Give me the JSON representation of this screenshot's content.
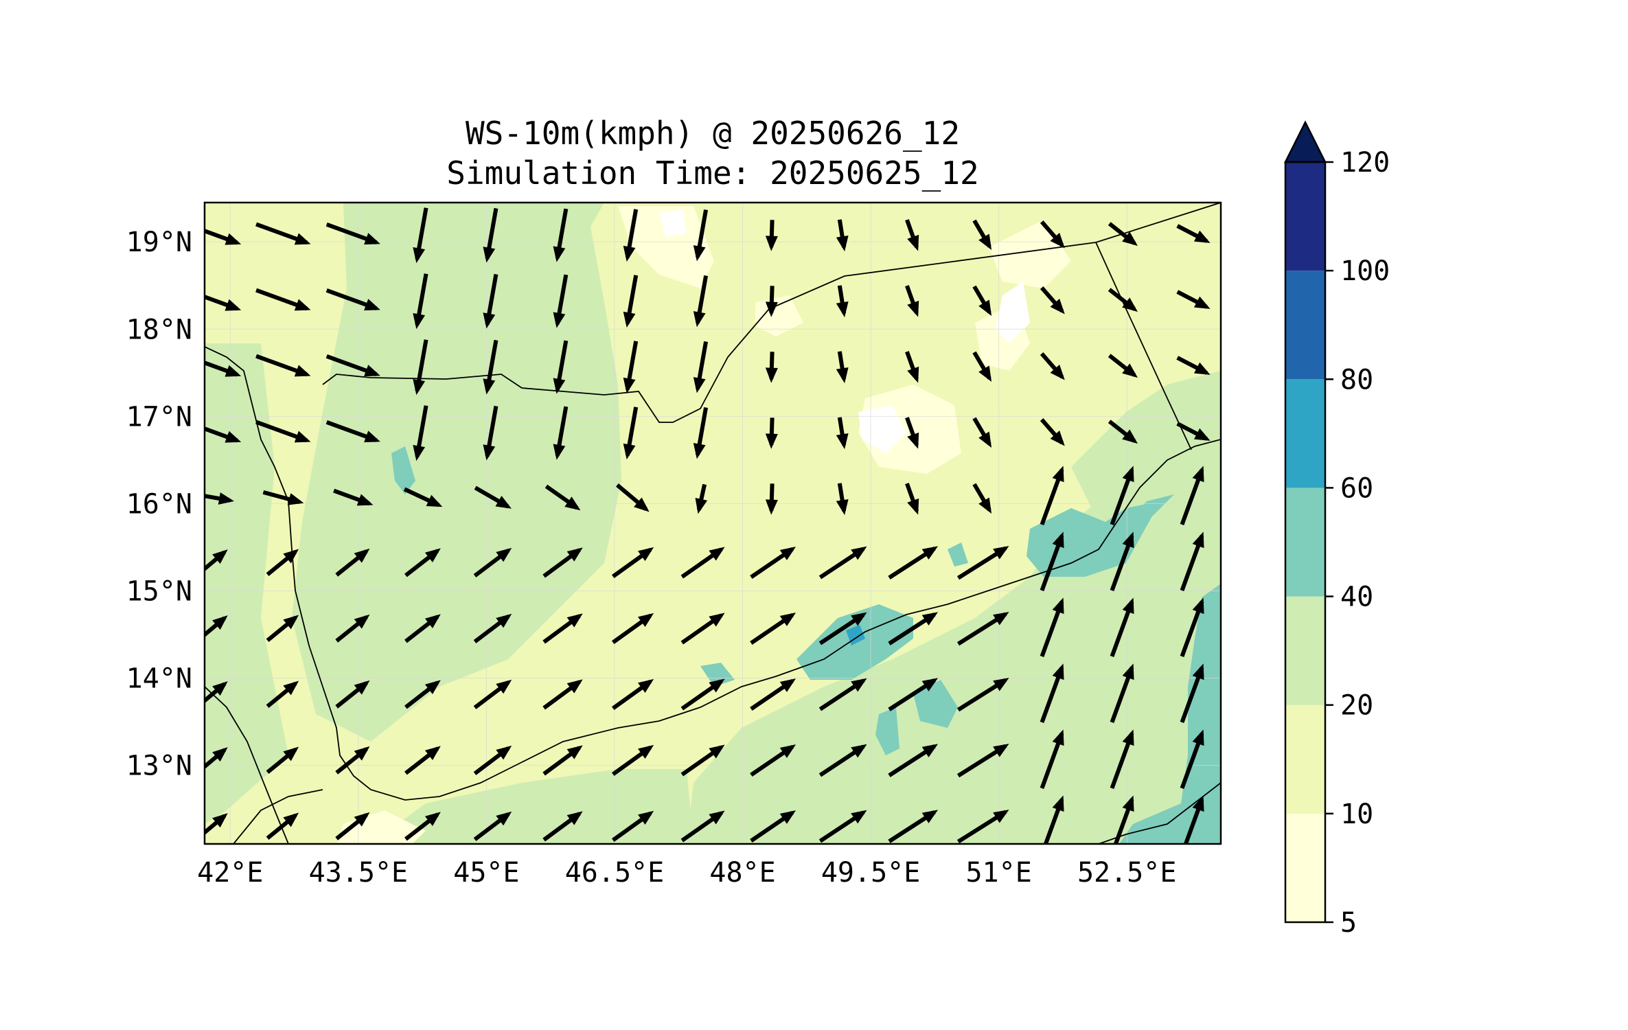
{
  "title": {
    "line1": "WS-10m(kmph) @ 20250626_12",
    "line2": "Simulation Time: 20250625_12"
  },
  "map": {
    "region": "Yemen / southern Arabian Peninsula / Gulf of Aden",
    "lon_range": [
      41.7,
      53.6
    ],
    "lat_range": [
      12.1,
      19.45
    ],
    "x_ticks": [
      "42°E",
      "43.5°E",
      "45°E",
      "46.5°E",
      "48°E",
      "49.5°E",
      "51°E",
      "52.5°E"
    ],
    "y_ticks": [
      "19°N",
      "18°N",
      "17°N",
      "16°N",
      "15°N",
      "14°N",
      "13°N"
    ],
    "x_tick_values": [
      42,
      43.5,
      45,
      46.5,
      48,
      49.5,
      51,
      52.5
    ],
    "y_tick_values": [
      19,
      18,
      17,
      16,
      15,
      14,
      13
    ],
    "gridlines": true,
    "features": [
      "coastline",
      "country borders",
      "wind vectors (quiver)",
      "filled wind-speed contours"
    ]
  },
  "colorbar": {
    "label_ticks": [
      "5",
      "10",
      "20",
      "40",
      "60",
      "80",
      "100",
      "120"
    ],
    "bands": [
      {
        "from": 5,
        "to": 10,
        "color": "#FFFFD9"
      },
      {
        "from": 10,
        "to": 20,
        "color": "#EFF8B6"
      },
      {
        "from": 20,
        "to": 40,
        "color": "#CFECB3"
      },
      {
        "from": 40,
        "to": 60,
        "color": "#7FCDBB"
      },
      {
        "from": 60,
        "to": 80,
        "color": "#2FA5C6"
      },
      {
        "from": 80,
        "to": 100,
        "color": "#2166AC"
      },
      {
        "from": 100,
        "to": 120,
        "color": "#1D2C82"
      }
    ],
    "extend_max_color": "#081D58",
    "extend": "max"
  }
}
